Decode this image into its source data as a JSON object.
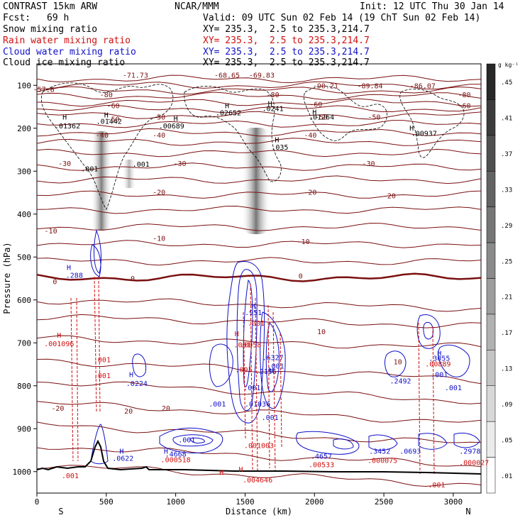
{
  "header": {
    "model": "CONTRAST 15km ARW",
    "org": "NCAR/MMM",
    "init": "Init: 12 UTC Thu 30 Jan 14",
    "fcst_label": "Fcst:",
    "fcst_value": "69 h",
    "valid": "Valid: 09 UTC Sun 02 Feb 14 (19 ChT Sun 02 Feb 14)",
    "fields": [
      {
        "name": "Snow mixing ratio",
        "xy": "XY= 235.3,  2.5 to 235.3,214.7",
        "color": "#000000"
      },
      {
        "name": "Rain water mixing ratio",
        "xy": "XY= 235.3,  2.5 to 235.3,214.7",
        "color": "#d01010"
      },
      {
        "name": "Cloud water mixing ratio",
        "xy": "XY= 235.3,  2.5 to 235.3,214.7",
        "color": "#1010c8"
      },
      {
        "name": "Cloud ice mixing ratio",
        "xy": "XY= 235.3,  2.5 to 235.3,214.7",
        "color": "#000000"
      }
    ]
  },
  "chart_data": {
    "type": "cross-section",
    "xlabel": "Distance (km)",
    "ylabel": "Pressure (hPa)",
    "xlim": [
      0,
      3200
    ],
    "ylim": [
      1050,
      50
    ],
    "x_ticks": [
      0,
      500,
      1000,
      1500,
      2000,
      2500,
      3000
    ],
    "y_ticks": [
      100,
      200,
      300,
      400,
      500,
      600,
      700,
      800,
      900,
      1000
    ],
    "x_end_labels": {
      "left": "S",
      "right": "N"
    },
    "colorbar": {
      "unit": "g kg⁻¹",
      "ticks": [
        ".45",
        ".41",
        ".37",
        ".33",
        ".29",
        ".25",
        ".21",
        ".17",
        ".13",
        ".09",
        ".05",
        ".01"
      ]
    },
    "isotherm_labels": [
      {
        "x": 50,
        "p": 115,
        "text": "-57.8"
      },
      {
        "x": 710,
        "p": 82,
        "text": "-71.73"
      },
      {
        "x": 1370,
        "p": 82,
        "text": "-68.65"
      },
      {
        "x": 1620,
        "p": 82,
        "text": "-69.83"
      },
      {
        "x": 2080,
        "p": 107,
        "text": "-90.21"
      },
      {
        "x": 2400,
        "p": 107,
        "text": "-89.84"
      },
      {
        "x": 2780,
        "p": 107,
        "text": "-86.07"
      },
      {
        "x": 500,
        "p": 128,
        "text": "-80"
      },
      {
        "x": 1700,
        "p": 128,
        "text": "-80"
      },
      {
        "x": 3080,
        "p": 128,
        "text": "-80"
      },
      {
        "x": 550,
        "p": 153,
        "text": "-60"
      },
      {
        "x": 2010,
        "p": 150,
        "text": "-60"
      },
      {
        "x": 3080,
        "p": 153,
        "text": "-60"
      },
      {
        "x": 550,
        "p": 185,
        "text": "-50"
      },
      {
        "x": 880,
        "p": 180,
        "text": "-50"
      },
      {
        "x": 2050,
        "p": 180,
        "text": "-50"
      },
      {
        "x": 2430,
        "p": 180,
        "text": "-50"
      },
      {
        "x": 470,
        "p": 222,
        "text": "-40"
      },
      {
        "x": 880,
        "p": 222,
        "text": "-40"
      },
      {
        "x": 1970,
        "p": 222,
        "text": "-40"
      },
      {
        "x": 200,
        "p": 288,
        "text": "-30"
      },
      {
        "x": 1030,
        "p": 288,
        "text": "-30"
      },
      {
        "x": 2390,
        "p": 288,
        "text": "-30"
      },
      {
        "x": 880,
        "p": 355,
        "text": "-20"
      },
      {
        "x": 1970,
        "p": 355,
        "text": "-20"
      },
      {
        "x": 2540,
        "p": 363,
        "text": "-20"
      },
      {
        "x": 100,
        "p": 445,
        "text": "-10"
      },
      {
        "x": 880,
        "p": 462,
        "text": "-10"
      },
      {
        "x": 1920,
        "p": 470,
        "text": "-10"
      },
      {
        "x": 130,
        "p": 563,
        "text": "0"
      },
      {
        "x": 690,
        "p": 556,
        "text": "0"
      },
      {
        "x": 1900,
        "p": 550,
        "text": "0"
      },
      {
        "x": 2050,
        "p": 680,
        "text": "10"
      },
      {
        "x": 2600,
        "p": 750,
        "text": "10"
      },
      {
        "x": 150,
        "p": 858,
        "text": "-20"
      },
      {
        "x": 660,
        "p": 865,
        "text": "20"
      },
      {
        "x": 930,
        "p": 858,
        "text": "20"
      }
    ],
    "extrema_labels": [
      {
        "x": 200,
        "p": 180,
        "text": "H",
        "color": "#000000"
      },
      {
        "x": 220,
        "p": 200,
        "text": ".01362",
        "color": "#000000"
      },
      {
        "x": 500,
        "p": 175,
        "text": "H",
        "color": "#000000"
      },
      {
        "x": 520,
        "p": 190,
        "text": ".01442",
        "color": "#000000"
      },
      {
        "x": 1000,
        "p": 183,
        "text": "H",
        "color": "#000000"
      },
      {
        "x": 970,
        "p": 200,
        "text": ".00689",
        "color": "#000000"
      },
      {
        "x": 1370,
        "p": 153,
        "text": "H",
        "color": "#000000"
      },
      {
        "x": 1380,
        "p": 170,
        "text": ".02652",
        "color": "#000000"
      },
      {
        "x": 1680,
        "p": 148,
        "text": "H",
        "color": "#000000"
      },
      {
        "x": 1700,
        "p": 160,
        "text": ".0241",
        "color": "#000000"
      },
      {
        "x": 2000,
        "p": 168,
        "text": "H",
        "color": "#000000"
      },
      {
        "x": 2050,
        "p": 180,
        "text": ".01264",
        "color": "#000000"
      },
      {
        "x": 2700,
        "p": 205,
        "text": "H",
        "color": "#000000"
      },
      {
        "x": 2790,
        "p": 218,
        "text": ".00937",
        "color": "#000000"
      },
      {
        "x": 1730,
        "p": 233,
        "text": "H",
        "color": "#000000"
      },
      {
        "x": 1750,
        "p": 250,
        "text": ".035",
        "color": "#000000"
      },
      {
        "x": 380,
        "p": 300,
        "text": ".001",
        "color": "#000000"
      },
      {
        "x": 750,
        "p": 290,
        "text": ".001",
        "color": "#000000"
      },
      {
        "x": 230,
        "p": 530,
        "text": "H",
        "color": "#1010c8"
      },
      {
        "x": 270,
        "p": 548,
        "text": ".288",
        "color": "#1010c8"
      },
      {
        "x": 1560,
        "p": 620,
        "text": "H",
        "color": "#1010c8"
      },
      {
        "x": 1560,
        "p": 635,
        "text": ".951",
        "color": "#1010c8"
      },
      {
        "x": 1690,
        "p": 770,
        "text": "H",
        "color": "#1010c8"
      },
      {
        "x": 1650,
        "p": 772,
        "text": ".2156",
        "color": "#1010c8"
      },
      {
        "x": 1700,
        "p": 740,
        "text": ".6327",
        "color": "#1010c8"
      },
      {
        "x": 1720,
        "p": 760,
        "text": ".001",
        "color": "#1010c8"
      },
      {
        "x": 1590,
        "p": 848,
        "text": ".01036",
        "color": "#1010c8"
      },
      {
        "x": 1680,
        "p": 880,
        "text": ".001",
        "color": "#1010c8"
      },
      {
        "x": 1550,
        "p": 810,
        "text": ".001",
        "color": "#1010c8"
      },
      {
        "x": 1300,
        "p": 848,
        "text": ".001",
        "color": "#1010c8"
      },
      {
        "x": 680,
        "p": 780,
        "text": "H",
        "color": "#1010c8"
      },
      {
        "x": 720,
        "p": 800,
        "text": ".0224",
        "color": "#1010c8"
      },
      {
        "x": 2620,
        "p": 795,
        "text": ".2492",
        "color": "#1010c8"
      },
      {
        "x": 2900,
        "p": 730,
        "text": "H",
        "color": "#1010c8"
      },
      {
        "x": 2900,
        "p": 742,
        "text": ".3055",
        "color": "#1010c8"
      },
      {
        "x": 2900,
        "p": 780,
        "text": ".001",
        "color": "#1010c8"
      },
      {
        "x": 3000,
        "p": 810,
        "text": ".001",
        "color": "#1010c8"
      },
      {
        "x": 1080,
        "p": 932,
        "text": ".001",
        "color": "#1010c8"
      },
      {
        "x": 610,
        "p": 958,
        "text": "H",
        "color": "#1010c8"
      },
      {
        "x": 620,
        "p": 975,
        "text": ".0622",
        "color": "#1010c8"
      },
      {
        "x": 930,
        "p": 958,
        "text": "H",
        "color": "#1010c8"
      },
      {
        "x": 1000,
        "p": 965,
        "text": ".4668",
        "color": "#1010c8"
      },
      {
        "x": 2050,
        "p": 970,
        "text": ".4657",
        "color": "#1010c8"
      },
      {
        "x": 2470,
        "p": 958,
        "text": ".3452",
        "color": "#1010c8"
      },
      {
        "x": 2690,
        "p": 958,
        "text": ".0693",
        "color": "#1010c8"
      },
      {
        "x": 3120,
        "p": 958,
        "text": ".2978",
        "color": "#1010c8"
      },
      {
        "x": 160,
        "p": 688,
        "text": "H",
        "color": "#d01010"
      },
      {
        "x": 160,
        "p": 708,
        "text": ".001096",
        "color": "#d01010"
      },
      {
        "x": 1440,
        "p": 685,
        "text": "H",
        "color": "#d01010"
      },
      {
        "x": 1480,
        "p": 710,
        "text": ".001",
        "color": "#d01010"
      },
      {
        "x": 1490,
        "p": 768,
        "text": ".001",
        "color": "#d01010"
      },
      {
        "x": 1540,
        "p": 710,
        "text": ".0058",
        "color": "#d01010"
      },
      {
        "x": 1580,
        "p": 660,
        "text": ".001",
        "color": "#d01010"
      },
      {
        "x": 470,
        "p": 745,
        "text": ".001",
        "color": "#d01010"
      },
      {
        "x": 470,
        "p": 782,
        "text": ".001",
        "color": "#d01010"
      },
      {
        "x": 2890,
        "p": 755,
        "text": ".00889",
        "color": "#d01010"
      },
      {
        "x": 1000,
        "p": 978,
        "text": ".000518",
        "color": "#d01010"
      },
      {
        "x": 1600,
        "p": 945,
        "text": ".001003",
        "color": "#d01010"
      },
      {
        "x": 1470,
        "p": 1000,
        "text": "H",
        "color": "#d01010"
      },
      {
        "x": 1590,
        "p": 1025,
        "text": ".004646",
        "color": "#d01010"
      },
      {
        "x": 2050,
        "p": 990,
        "text": ".00533",
        "color": "#d01010"
      },
      {
        "x": 2490,
        "p": 980,
        "text": ".000075",
        "color": "#d01010"
      },
      {
        "x": 3150,
        "p": 985,
        "text": ".000027",
        "color": "#d01010"
      },
      {
        "x": 240,
        "p": 1015,
        "text": ".001",
        "color": "#d01010"
      },
      {
        "x": 2880,
        "p": 1037,
        "text": ".001",
        "color": "#d01010"
      },
      {
        "x": 1330,
        "p": 1008,
        "text": "H",
        "color": "#d01010"
      }
    ]
  }
}
